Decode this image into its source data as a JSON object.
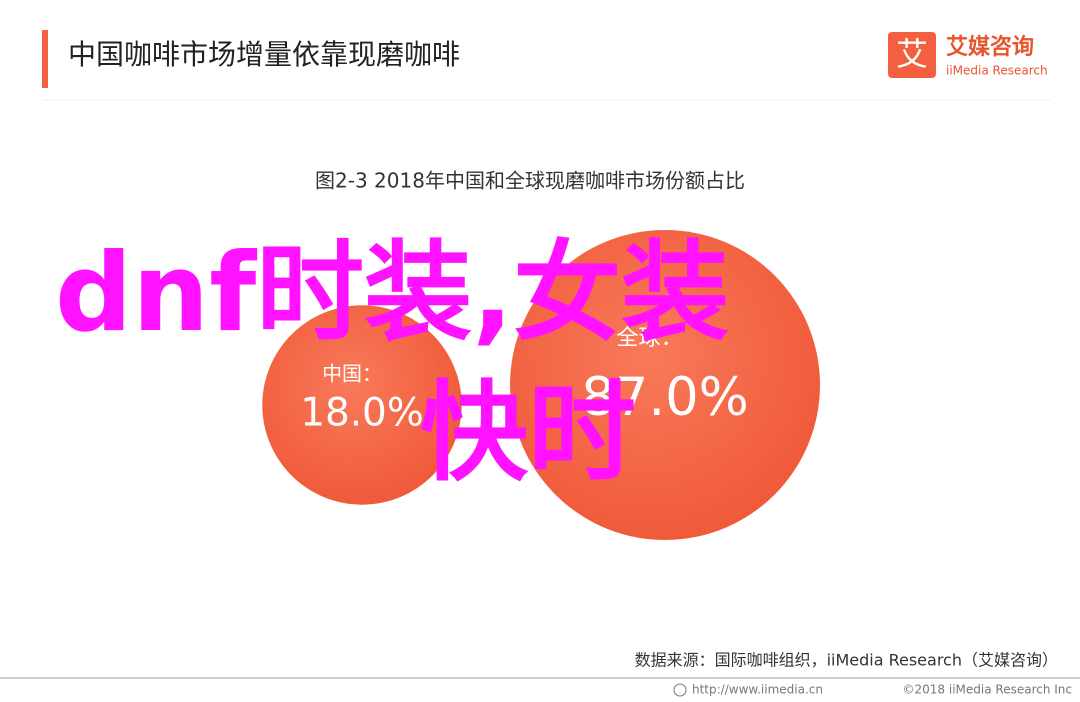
{
  "chart_data": {
    "type": "bubble",
    "title": "中国咖啡市场增量依靠现磨咖啡",
    "logo": {
      "mark": "艾",
      "name": "艾媒咨询",
      "name_en": "iiMedia Research"
    },
    "subtitle": "图2-3 2018年中国和全球现磨咖啡市场份额占比",
    "categories": [
      "中国：",
      "全球："
    ],
    "values": [
      18.0,
      87.0
    ],
    "value_labels": [
      "18.0%",
      "87.0%"
    ],
    "color": "#f2603f",
    "overlay": [
      "dnf时装,女装",
      "快时"
    ],
    "source": "数据来源：国际咖啡组织，iiMedia Research（艾媒咨询）",
    "footer": [
      "http://www.iimedia.cn",
      "©2018  iiMedia Research  Inc"
    ]
  }
}
